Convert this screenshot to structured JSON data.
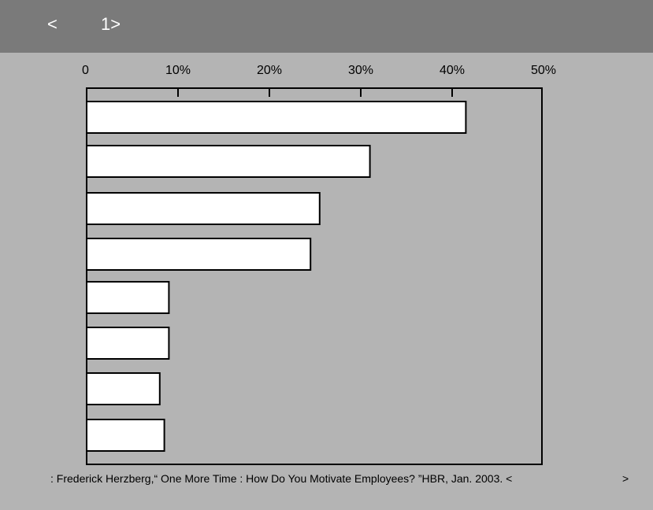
{
  "header": {
    "prev": "<",
    "page": "1>"
  },
  "chart_data": {
    "type": "bar",
    "orientation": "horizontal",
    "title": "",
    "xlabel": "",
    "ylabel": "",
    "x_ticks": [
      "0",
      "10%",
      "20%",
      "30%",
      "40%",
      "50%"
    ],
    "xlim": [
      0,
      50
    ],
    "categories": [
      "",
      "",
      "",
      "",
      "",
      "",
      "",
      ""
    ],
    "values": [
      41.5,
      31,
      25.5,
      24.5,
      9,
      9,
      8,
      8.5
    ],
    "bar_color": "#ffffff",
    "grid": false
  },
  "footer": {
    "source": ": Frederick Herzberg,“ One More Time : How Do You Motivate Employees? ”HBR, Jan. 2003. <",
    "source_end": ">"
  }
}
